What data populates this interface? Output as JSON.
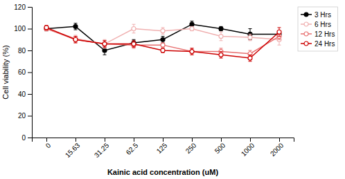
{
  "chart_data": {
    "type": "line",
    "xlabel": "Kainic acid concentration (uM)",
    "ylabel": "Cell viability (%)",
    "categories": [
      "0",
      "15.63",
      "31.25",
      "62.5",
      "125",
      "250",
      "500",
      "1000",
      "2000"
    ],
    "series": [
      {
        "name": "3 Hrs",
        "color": "#000000",
        "marker": "circle",
        "values": [
          100,
          102,
          80,
          87,
          90,
          104,
          100,
          95,
          95
        ],
        "errors": [
          2,
          3,
          4,
          3,
          3,
          3,
          2,
          5,
          3
        ]
      },
      {
        "name": "6 Hrs",
        "color": "#f0b0b0",
        "marker": "open-circle",
        "values": [
          100,
          91,
          86,
          100,
          98,
          100,
          93,
          92,
          90
        ],
        "errors": [
          2,
          3,
          4,
          4,
          3,
          2,
          4,
          3,
          5
        ]
      },
      {
        "name": "12 Hrs",
        "color": "#e87070",
        "marker": "open-circle",
        "values": [
          100,
          90,
          86,
          85,
          85,
          79,
          79,
          77,
          93
        ],
        "errors": [
          2,
          3,
          3,
          3,
          2,
          3,
          3,
          3,
          3
        ]
      },
      {
        "name": "24 Hrs",
        "color": "#cc0000",
        "marker": "open-circle",
        "values": [
          101,
          90,
          86,
          86,
          80,
          79,
          76,
          73,
          97
        ],
        "errors": [
          2,
          3,
          3,
          3,
          2,
          3,
          3,
          3,
          4
        ]
      }
    ],
    "ylim": [
      0,
      120
    ],
    "yticks": [
      0,
      20,
      40,
      60,
      80,
      100,
      120
    ],
    "grid": false,
    "legend": "upper right"
  }
}
